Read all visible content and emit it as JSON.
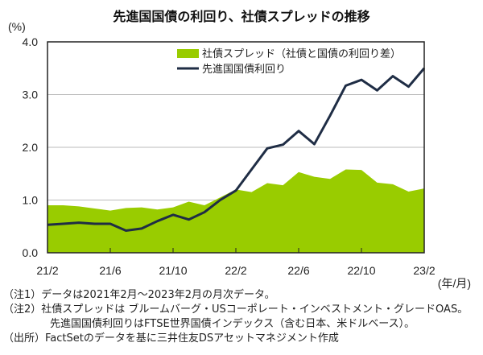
{
  "chart_data": {
    "type": "area+line",
    "title": "先進国国債の利回り、社債スプレッドの推移",
    "ylabel": "(%)",
    "xlabel": "(年/月)",
    "ylim": [
      0,
      4
    ],
    "yticks": [
      "0.0",
      "1.0",
      "2.0",
      "3.0",
      "4.0"
    ],
    "x": [
      "21/2",
      "21/3",
      "21/4",
      "21/5",
      "21/6",
      "21/7",
      "21/8",
      "21/9",
      "21/10",
      "21/11",
      "21/12",
      "22/1",
      "22/2",
      "22/3",
      "22/4",
      "22/5",
      "22/6",
      "22/7",
      "22/8",
      "22/9",
      "22/10",
      "22/11",
      "22/12",
      "23/1",
      "23/2"
    ],
    "xtick_labels": [
      "21/2",
      "21/6",
      "21/10",
      "22/2",
      "22/6",
      "22/10",
      "23/2"
    ],
    "grid": true,
    "legend_position": "top-right",
    "series": [
      {
        "name": "社債スプレッド（社債と国債の利回り差）",
        "type": "area",
        "color": "#99cc00",
        "values": [
          0.9,
          0.9,
          0.88,
          0.84,
          0.8,
          0.85,
          0.86,
          0.82,
          0.86,
          0.97,
          0.9,
          1.05,
          1.2,
          1.15,
          1.32,
          1.28,
          1.53,
          1.44,
          1.4,
          1.58,
          1.57,
          1.33,
          1.3,
          1.16,
          1.22
        ]
      },
      {
        "name": "先進国国債利回り",
        "type": "line",
        "color": "#1f2d45",
        "values": [
          0.53,
          0.55,
          0.57,
          0.55,
          0.55,
          0.42,
          0.46,
          0.6,
          0.72,
          0.63,
          0.77,
          1.0,
          1.18,
          1.58,
          1.98,
          2.05,
          2.31,
          2.06,
          2.6,
          3.17,
          3.28,
          3.08,
          3.35,
          3.15,
          3.5
        ]
      }
    ]
  },
  "notes": [
    "（注1）データは2021年2月～2023年2月の月次データ。",
    "（注2）社債スプレッドは ブルームバーグ・USコーポレート・インベストメント・グレードOAS。",
    "先進国国債利回りはFTSE世界国債インデックス（含む日本、米ドルベース）。",
    "（出所）FactSetのデータを基に三井住友DSアセットマネジメント作成"
  ]
}
